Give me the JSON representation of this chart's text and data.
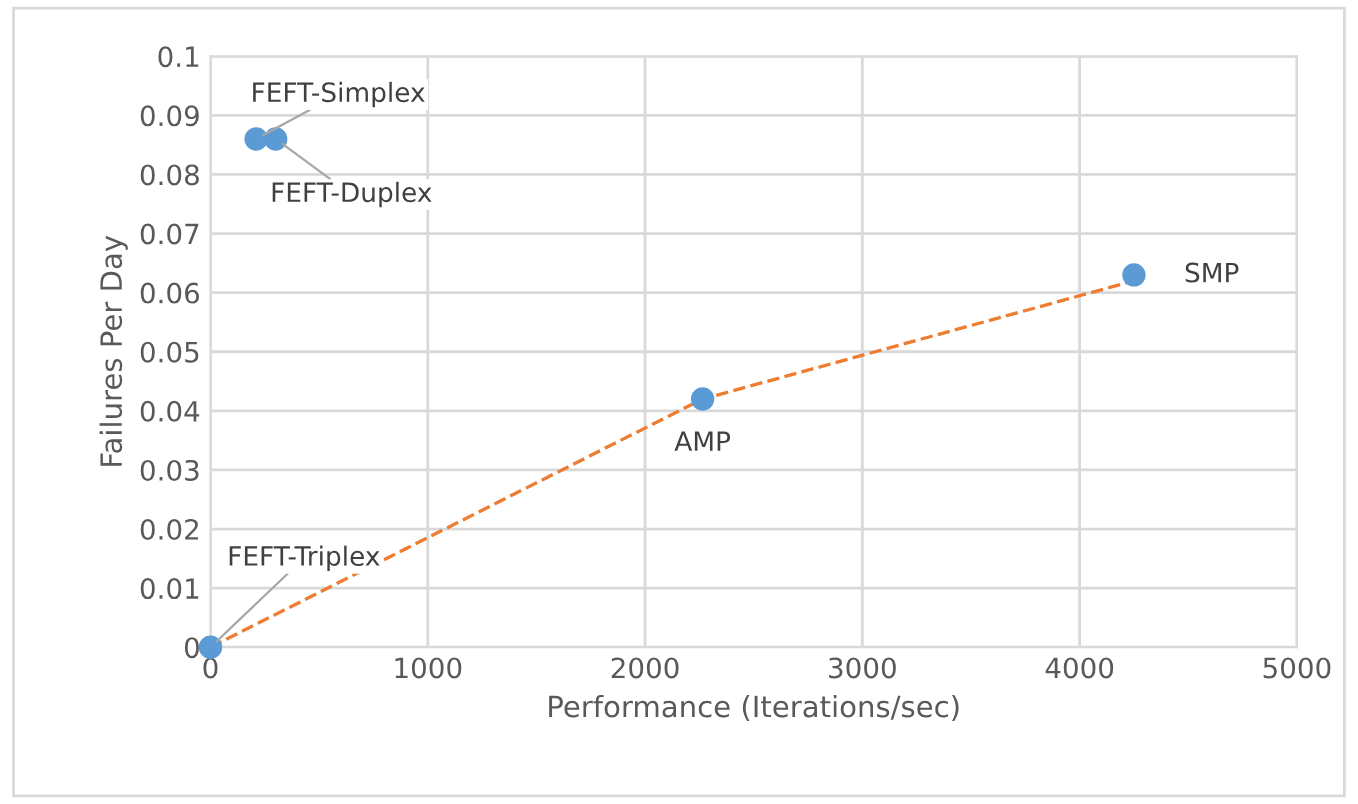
{
  "chart_data": {
    "type": "scatter",
    "xlabel": "Performance (Iterations/sec)",
    "ylabel": "Failures Per Day",
    "series": [
      {
        "color": "#5b9bd5",
        "x": [
          210,
          300,
          0,
          2265,
          4250
        ],
        "values": [
          0.086,
          0.086,
          0,
          0.042,
          0.063
        ],
        "marker": "circle"
      },
      {
        "type": "line",
        "color": "#ed7d31",
        "x": [
          0,
          2265,
          4250
        ],
        "values": [
          0,
          0.042,
          0.062
        ],
        "line_style": "dashed",
        "marker": "none"
      }
    ],
    "annotations": [
      {
        "text": "FEFT-Simplex",
        "x": 210,
        "y": 0.086
      },
      {
        "text": "FEFT-Duplex",
        "x": 300,
        "y": 0.086
      },
      {
        "text": "FEFT-Triplex",
        "x": 0,
        "y": 0
      },
      {
        "text": "AMP",
        "x": 2265,
        "y": 0.042
      },
      {
        "text": "SMP",
        "x": 4250,
        "y": 0.063
      }
    ],
    "xlim": [
      0,
      5000
    ],
    "xticks": [
      0,
      1000,
      2000,
      3000,
      4000,
      5000
    ],
    "ylim": [
      0,
      0.1
    ],
    "yticks": [
      0,
      0.01,
      0.02,
      0.03,
      0.04,
      0.05,
      0.06,
      0.07,
      0.08,
      0.09,
      0.1
    ],
    "grid": true,
    "legend": false
  }
}
